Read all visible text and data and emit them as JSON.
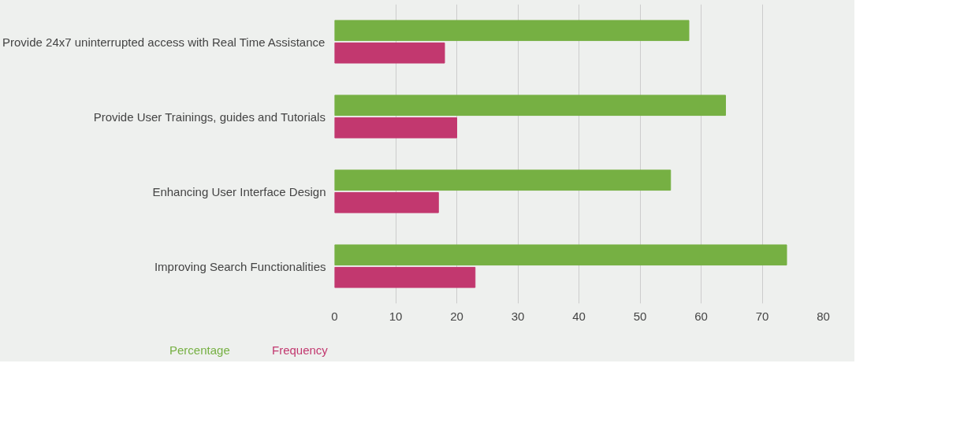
{
  "chart_data": {
    "type": "bar",
    "orientation": "horizontal",
    "categories": [
      "Provide 24x7 uninterrupted access with Real Time Assistance",
      "Provide User Trainings, guides and Tutorials",
      "Enhancing User Interface Design",
      "Improving Search Functionalities"
    ],
    "series": [
      {
        "name": "Percentage",
        "color": "#76b043",
        "values": [
          58,
          64,
          55,
          74
        ]
      },
      {
        "name": "Frequency",
        "color": "#c2386f",
        "values": [
          18,
          20,
          17,
          23
        ]
      }
    ],
    "xlim": [
      0,
      80
    ],
    "xticks": [
      0,
      10,
      20,
      30,
      40,
      50,
      60,
      70,
      80
    ],
    "grid": "x",
    "legend": "bottom"
  }
}
